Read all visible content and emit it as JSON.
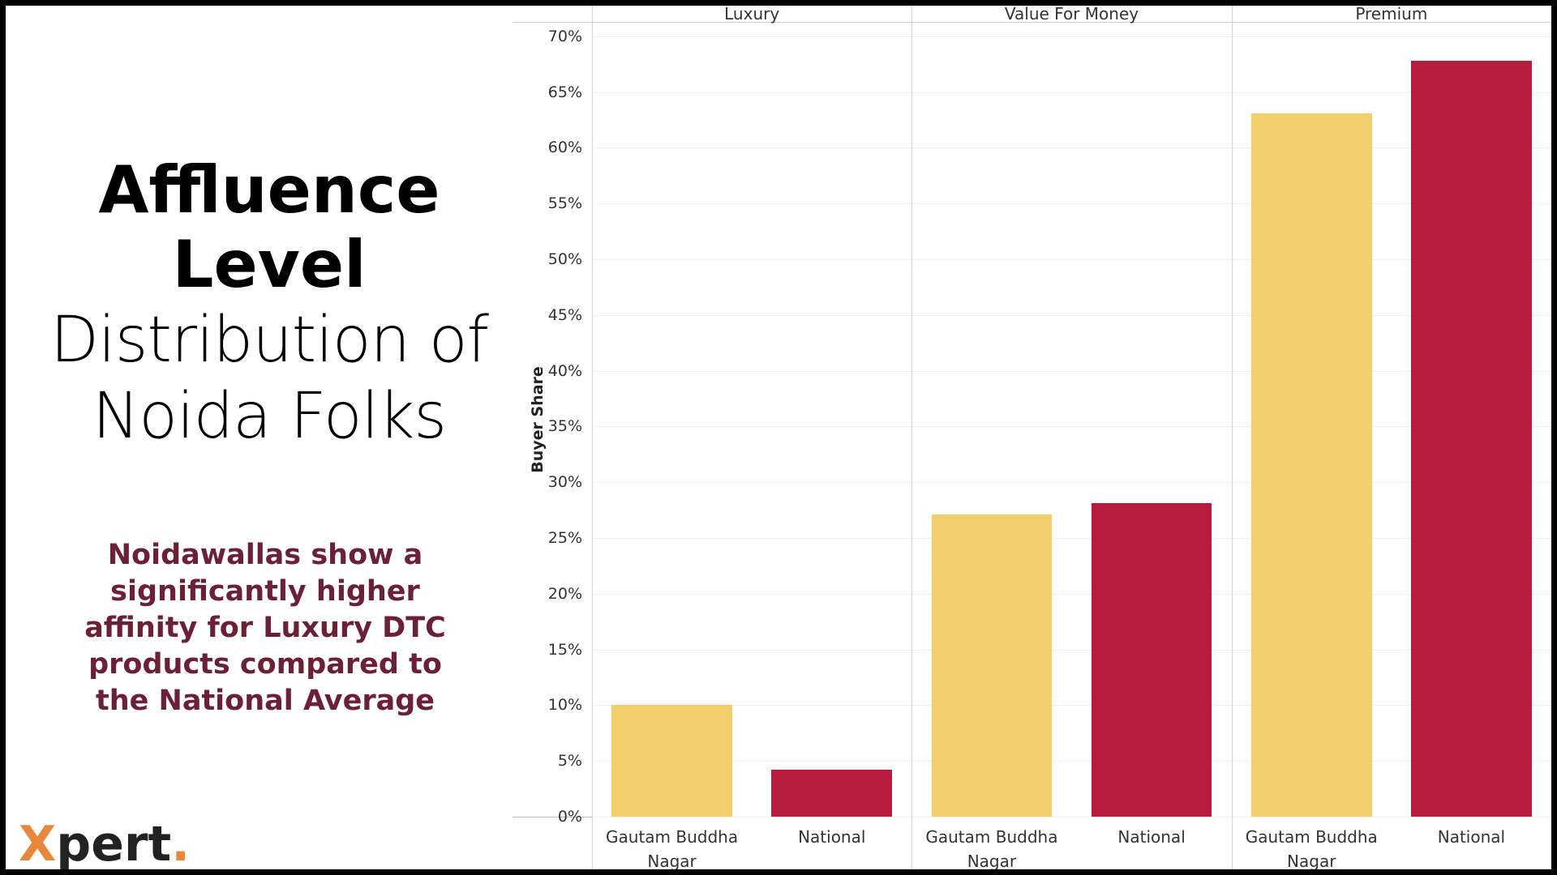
{
  "title": {
    "lines": [
      "Affluence",
      "Level",
      "Distribution of",
      "Noida Folks"
    ]
  },
  "note": "Noidawallas show a significantly higher affinity for Luxury DTC products compared to the National Average",
  "logo": {
    "initial": "X",
    "rest": "pert",
    "dot": "."
  },
  "chart_data": {
    "type": "bar",
    "y_label": "Buyer Share",
    "facets": [
      "Luxury",
      "Value For Money",
      "Premium"
    ],
    "series": [
      {
        "name": "Gautam Buddha Nagar",
        "color": "#f2cf6a",
        "values": [
          10,
          27.1,
          63.1
        ]
      },
      {
        "name": "National",
        "color": "#b71c3f",
        "values": [
          4.2,
          28.1,
          67.8
        ]
      }
    ],
    "ylim": [
      0,
      71.3
    ],
    "yticks": [
      {
        "value": 0,
        "label": "0%"
      },
      {
        "value": 5,
        "label": "5%"
      },
      {
        "value": 10,
        "label": "10%"
      },
      {
        "value": 15,
        "label": "15%"
      },
      {
        "value": 20,
        "label": "20%"
      },
      {
        "value": 25,
        "label": "25%"
      },
      {
        "value": 30,
        "label": "30%"
      },
      {
        "value": 35,
        "label": "35%"
      },
      {
        "value": 40,
        "label": "40%"
      },
      {
        "value": 45,
        "label": "45%"
      },
      {
        "value": 50,
        "label": "50%"
      },
      {
        "value": 55,
        "label": "55%"
      },
      {
        "value": 60,
        "label": "60%"
      },
      {
        "value": 65,
        "label": "65%"
      },
      {
        "value": 70,
        "label": "70%"
      }
    ],
    "grid": true
  }
}
